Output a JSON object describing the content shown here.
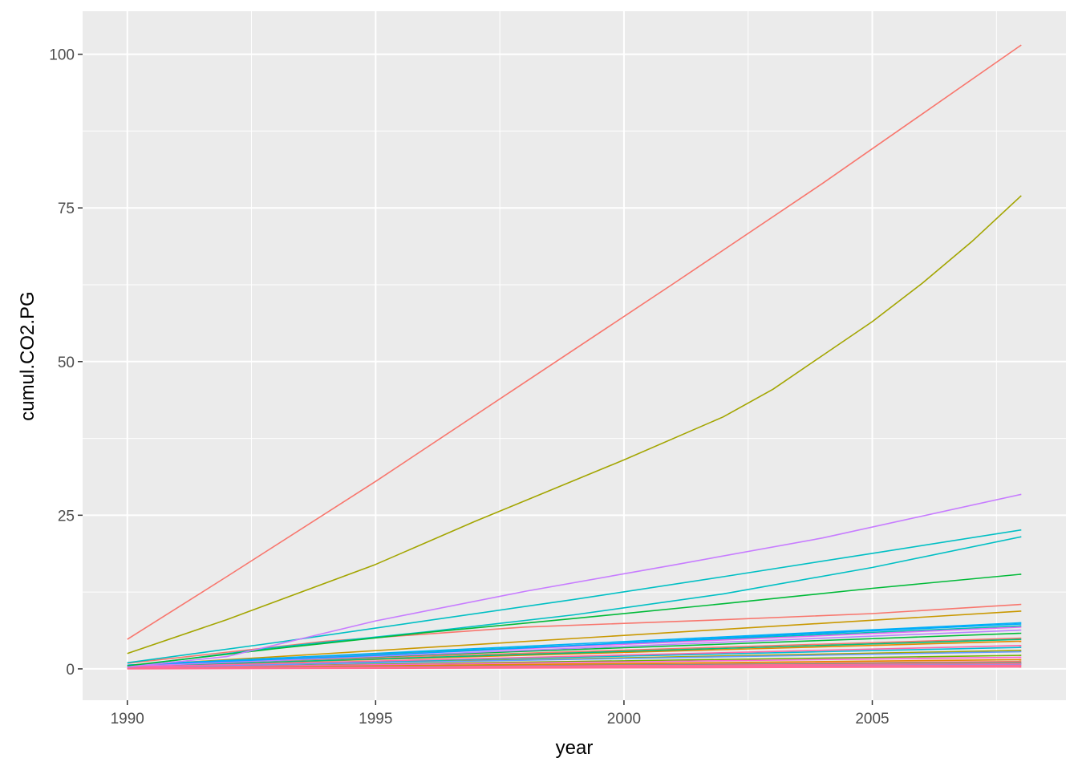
{
  "chart_data": {
    "type": "line",
    "title": "",
    "xlabel": "year",
    "ylabel": "cumul.CO2.PG",
    "xlim": [
      1989.1,
      2008.9
    ],
    "ylim": [
      -5.1,
      107.0
    ],
    "x_ticks": [
      1990,
      1995,
      2000,
      2005
    ],
    "y_ticks": [
      0,
      25,
      50,
      75,
      100
    ],
    "x_tick_labels": [
      "1990",
      "1995",
      "2000",
      "2005"
    ],
    "y_tick_labels": [
      "0",
      "25",
      "50",
      "75",
      "100"
    ],
    "grid": true,
    "legend": "none",
    "series": [
      {
        "color": "#F8766D",
        "x": [
          1990,
          2008
        ],
        "y": [
          0.6,
          5.0
        ]
      },
      {
        "color": "#E58700",
        "x": [
          1990,
          2008
        ],
        "y": [
          0.4,
          4.5
        ]
      },
      {
        "color": "#C99800",
        "x": [
          1990,
          2008
        ],
        "y": [
          0.5,
          9.4
        ]
      },
      {
        "color": "#A3A500",
        "x": [
          1990,
          2008
        ],
        "y": [
          0.3,
          3.0
        ]
      },
      {
        "color": "#6BB100",
        "x": [
          1990,
          2008
        ],
        "y": [
          0.2,
          2.2
        ]
      },
      {
        "color": "#00BA38",
        "x": [
          1990,
          2008
        ],
        "y": [
          0.5,
          5.8
        ]
      },
      {
        "color": "#00BF7D",
        "x": [
          1990,
          2008
        ],
        "y": [
          0.4,
          4.8
        ]
      },
      {
        "color": "#00C0AF",
        "x": [
          1990,
          2008
        ],
        "y": [
          0.6,
          7.0
        ]
      },
      {
        "color": "#00BCD8",
        "x": [
          1990,
          2008
        ],
        "y": [
          0.3,
          3.5
        ]
      },
      {
        "color": "#00B0F6",
        "x": [
          1990,
          2008
        ],
        "y": [
          0.6,
          7.5
        ]
      },
      {
        "color": "#619CFF",
        "x": [
          1990,
          2008
        ],
        "y": [
          0.3,
          2.8
        ]
      },
      {
        "color": "#B983FF",
        "x": [
          1990,
          2008
        ],
        "y": [
          0.4,
          6.3
        ]
      },
      {
        "color": "#E76BF3",
        "x": [
          1990,
          2008
        ],
        "y": [
          0.5,
          6.8
        ]
      },
      {
        "color": "#FD61D1",
        "x": [
          1990,
          2008
        ],
        "y": [
          0.2,
          1.9
        ]
      },
      {
        "color": "#FF67A4",
        "x": [
          1990,
          2008
        ],
        "y": [
          0.3,
          3.8
        ]
      },
      {
        "color": "#F8766D",
        "x": [
          1990,
          2008
        ],
        "y": [
          0.1,
          1.2
        ]
      },
      {
        "color": "#E58700",
        "x": [
          1990,
          2008
        ],
        "y": [
          0.1,
          1.5
        ]
      },
      {
        "color": "#00BF7D",
        "x": [
          1990,
          2008
        ],
        "y": [
          0.1,
          1.0
        ]
      },
      {
        "color": "#619CFF",
        "x": [
          1990,
          2008
        ],
        "y": [
          0.1,
          0.8
        ]
      },
      {
        "color": "#FF67A4",
        "x": [
          1990,
          2008
        ],
        "y": [
          0.1,
          0.6
        ]
      },
      {
        "color": "#FF6C91",
        "x": [
          1990,
          2008
        ],
        "y": [
          0.0,
          0.3
        ]
      },
      {
        "color": "#FF6C91",
        "x": [
          1990,
          2008
        ],
        "y": [
          0.1,
          0.5
        ]
      },
      {
        "color": "#FF6C91",
        "x": [
          1990,
          2008
        ],
        "y": [
          0.1,
          0.9
        ]
      },
      {
        "color": "#F8766D",
        "x": [
          1990,
          1994,
          1998,
          2002,
          2005,
          2008
        ],
        "y": [
          0.9,
          4.5,
          6.8,
          8.0,
          9.0,
          10.5
        ]
      },
      {
        "color": "#00A9FF",
        "x": [
          1990,
          1995,
          2000,
          2005,
          2008
        ],
        "y": [
          0.6,
          2.2,
          4.2,
          6.2,
          7.3
        ]
      },
      {
        "color": "#00BFC4",
        "x": [
          1990,
          1993,
          1996,
          1999,
          2002,
          2005,
          2008
        ],
        "y": [
          0.4,
          3.5,
          6.0,
          8.8,
          12.2,
          16.5,
          21.5
        ]
      },
      {
        "color": "#00BFC4",
        "x": [
          1990,
          1993,
          1996,
          1999,
          2002,
          2005,
          2008
        ],
        "y": [
          1.0,
          4.3,
          7.8,
          11.3,
          15.0,
          18.8,
          22.6
        ]
      },
      {
        "color": "#00BA38",
        "x": [
          1990,
          1993,
          1996,
          1999,
          2002,
          2005,
          2008
        ],
        "y": [
          0.5,
          3.3,
          5.9,
          8.2,
          10.6,
          13.1,
          15.4
        ]
      },
      {
        "color": "#C77CFF",
        "x": [
          1990,
          1992,
          1995,
          1998,
          2001,
          2004,
          2008
        ],
        "y": [
          0.3,
          2.0,
          7.8,
          12.6,
          16.9,
          21.3,
          28.4
        ]
      },
      {
        "color": "#A3A500",
        "x": [
          1990,
          1992,
          1995,
          1997,
          2000,
          2002,
          2003,
          2004,
          2005,
          2006,
          2007,
          2008
        ],
        "y": [
          2.5,
          8.0,
          17.0,
          24.0,
          34.0,
          41.0,
          45.5,
          51.0,
          56.5,
          62.7,
          69.5,
          77.0
        ]
      },
      {
        "color": "#F8766D",
        "x": [
          1990,
          1992,
          1995,
          1998,
          2001,
          2004,
          2008
        ],
        "y": [
          4.8,
          15.0,
          30.5,
          46.6,
          62.7,
          79.0,
          101.5
        ]
      }
    ]
  }
}
